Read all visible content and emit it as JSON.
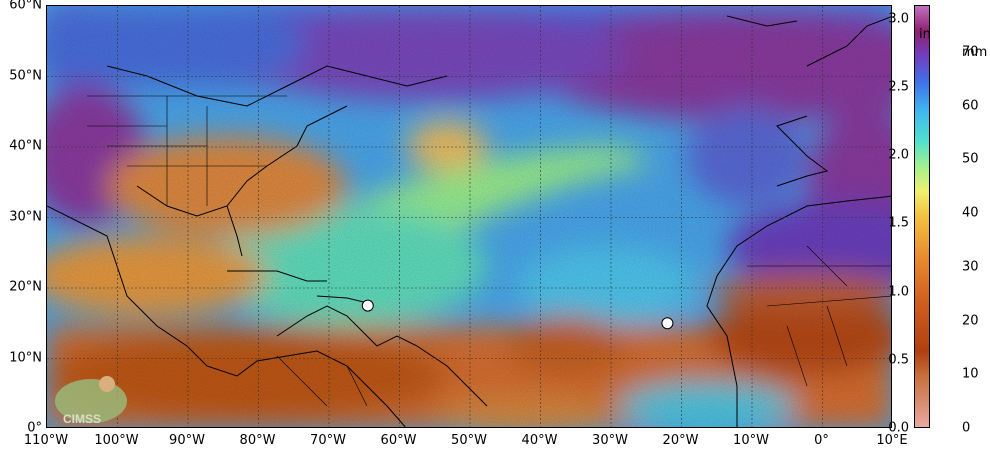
{
  "colors": {
    "land_border": "#000000",
    "grid": "#333333",
    "marker_fill": "#ffffff"
  },
  "lat_labels": [
    "60°N",
    "50°N",
    "40°N",
    "30°N",
    "20°N",
    "10°N",
    "0°"
  ],
  "lon_labels": [
    "110°W",
    "100°W",
    "90°W",
    "80°W",
    "70°W",
    "60°W",
    "50°W",
    "40°W",
    "30°W",
    "20°W",
    "10°W",
    "0°",
    "10°E"
  ],
  "colorbar": {
    "inch_unit": "in",
    "mm_unit": "mm",
    "inch_ticks": [
      "3.0",
      "2.5",
      "2.0",
      "1.5",
      "1.0",
      "0.5",
      "0.0"
    ],
    "mm_ticks": [
      "70",
      "60",
      "50",
      "40",
      "30",
      "20",
      "10",
      "0"
    ]
  },
  "logo_text": "CIMSS",
  "markers": [
    {
      "name": "storm-marker-west",
      "lon": -64.5,
      "lat": 17.5
    },
    {
      "name": "storm-marker-east",
      "lon": -22,
      "lat": 15
    }
  ]
}
